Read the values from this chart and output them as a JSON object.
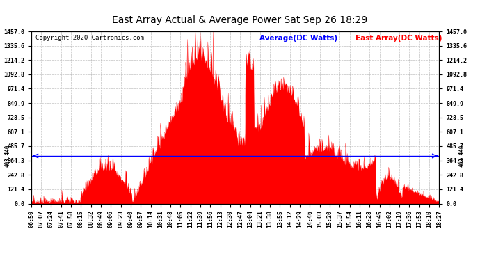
{
  "title": "East Array Actual & Average Power Sat Sep 26 18:29",
  "copyright": "Copyright 2020 Cartronics.com",
  "legend_avg": "Average(DC Watts)",
  "legend_east": "East Array(DC Watts)",
  "avg_value": 403.44,
  "avg_label": "403.440",
  "y_max": 1457.0,
  "y_min": 0.0,
  "yticks": [
    0.0,
    121.4,
    242.8,
    364.3,
    485.7,
    607.1,
    728.5,
    849.9,
    971.4,
    1092.8,
    1214.2,
    1335.6,
    1457.0
  ],
  "background_color": "#ffffff",
  "fill_color": "#ff0000",
  "avg_line_color": "#0000ff",
  "grid_color": "#bbbbbb",
  "title_fontsize": 10,
  "copyright_fontsize": 6.5,
  "legend_fontsize": 7.5,
  "tick_fontsize": 6,
  "x_labels": [
    "06:50",
    "07:07",
    "07:24",
    "07:41",
    "07:58",
    "08:15",
    "08:32",
    "08:49",
    "09:06",
    "09:23",
    "09:40",
    "09:57",
    "10:14",
    "10:31",
    "10:48",
    "11:05",
    "11:22",
    "11:39",
    "11:56",
    "12:13",
    "12:30",
    "12:47",
    "13:04",
    "13:21",
    "13:38",
    "13:55",
    "14:12",
    "14:29",
    "14:46",
    "15:03",
    "15:20",
    "15:37",
    "15:54",
    "16:11",
    "16:28",
    "16:45",
    "17:02",
    "17:19",
    "17:36",
    "17:53",
    "18:10",
    "18:27"
  ]
}
